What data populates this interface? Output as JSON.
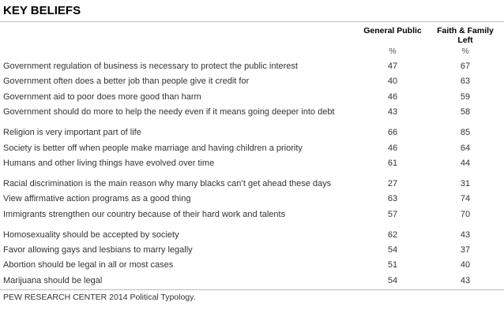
{
  "title": "KEY BELIEFS",
  "columns": [
    "General Public",
    "Faith & Family Left"
  ],
  "units": [
    "%",
    "%"
  ],
  "groups": [
    {
      "rows": [
        {
          "label": "Government regulation of business is necessary to protect the public interest",
          "values": [
            47,
            67
          ]
        },
        {
          "label": "Government often does a better job than people give it credit for",
          "values": [
            40,
            63
          ]
        },
        {
          "label": "Government aid to poor does more good than harm",
          "values": [
            46,
            59
          ]
        },
        {
          "label": "Government should do more to help the needy even if it means going deeper into debt",
          "values": [
            43,
            58
          ]
        }
      ]
    },
    {
      "rows": [
        {
          "label": "Religion is very important part of life",
          "values": [
            66,
            85
          ]
        },
        {
          "label": "Society is better off when people make marriage and having children a priority",
          "values": [
            46,
            64
          ]
        },
        {
          "label": "Humans and other living things have evolved over time",
          "values": [
            61,
            44
          ]
        }
      ]
    },
    {
      "rows": [
        {
          "label": "Racial discrimination is the main reason why many blacks can’t get ahead these days",
          "values": [
            27,
            31
          ]
        },
        {
          "label": "View affirmative action programs as a good thing",
          "values": [
            63,
            74
          ]
        },
        {
          "label": "Immigrants strengthen our country because of their hard work and talents",
          "values": [
            57,
            70
          ]
        }
      ]
    },
    {
      "rows": [
        {
          "label": "Homosexuality should be accepted by society",
          "values": [
            62,
            43
          ]
        },
        {
          "label": "Favor allowing gays and lesbians to marry legally",
          "values": [
            54,
            37
          ]
        },
        {
          "label": "Abortion should be legal in all or most cases",
          "values": [
            51,
            40
          ]
        },
        {
          "label": "Marijuana should be legal",
          "values": [
            54,
            43
          ]
        }
      ]
    }
  ],
  "source": "PEW RESEARCH CENTER 2014 Political Typology."
}
